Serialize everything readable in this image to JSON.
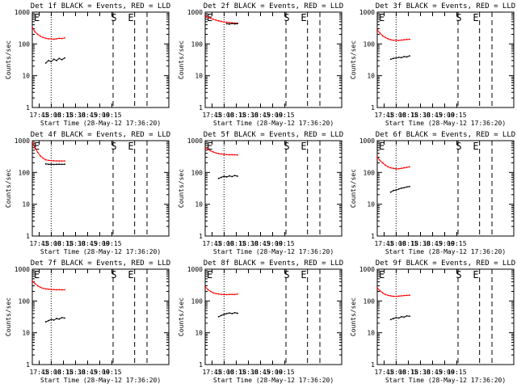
{
  "figure": {
    "xlabel": "Start Time (28-May-12 17:36:20)",
    "ylabel": "Counts/sec",
    "x_tick_labels": [
      "17:45",
      "18:00",
      "18:15",
      "18:30",
      "18:45",
      "19:00",
      "19:15"
    ],
    "y_tick_labels": [
      "1",
      "10",
      "100",
      "1000"
    ],
    "colors": {
      "events": "#000000",
      "lld": "#ff0000",
      "axes": "#000000"
    },
    "markers": {
      "E_left": "E",
      "S": "S",
      "E_right": "E"
    }
  },
  "chart_data": [
    {
      "type": "line",
      "title": "Det 1f BLACK = Events, RED = LLD",
      "xlim": [
        0,
        10140
      ],
      "ylim": [
        1,
        1000
      ],
      "yscale": "log",
      "x_unit": "seconds after 17:36:20",
      "vlines": {
        "dotted": [
          1400
        ],
        "dashed": [
          6000,
          7600,
          8520
        ]
      },
      "series": [
        {
          "name": "RED = LLD",
          "x": [
            0,
            200,
            400,
            600,
            800,
            1000,
            1200,
            1400,
            1600,
            1800,
            2000,
            2200,
            2400
          ],
          "values": [
            330,
            240,
            200,
            175,
            160,
            150,
            145,
            145,
            140,
            145,
            150,
            148,
            155
          ]
        },
        {
          "name": "BLACK = Events",
          "x": [
            1000,
            1200,
            1400,
            1600,
            1800,
            2000,
            2200,
            2400
          ],
          "values": [
            25,
            30,
            28,
            33,
            30,
            35,
            32,
            36
          ]
        }
      ]
    },
    {
      "type": "line",
      "title": "Det 2f BLACK = Events, RED = LLD",
      "xlim": [
        0,
        10140
      ],
      "ylim": [
        1,
        1000
      ],
      "yscale": "log",
      "x_unit": "seconds after 17:36:20",
      "vlines": {
        "dotted": [
          1400
        ],
        "dashed": [
          6000,
          7600,
          8520
        ]
      },
      "series": [
        {
          "name": "RED = LLD",
          "x": [
            0,
            200,
            400,
            600,
            800,
            1000,
            1200,
            1400,
            1600,
            1800,
            2000,
            2200,
            2400
          ],
          "values": [
            760,
            700,
            640,
            600,
            560,
            530,
            510,
            490,
            480,
            470,
            460,
            455,
            450
          ]
        },
        {
          "name": "BLACK = Events",
          "x": [
            1600,
            1800,
            2000,
            2200,
            2400
          ],
          "values": [
            430,
            420,
            440,
            425,
            435
          ]
        }
      ]
    },
    {
      "type": "line",
      "title": "Det 3f BLACK = Events, RED = LLD",
      "xlim": [
        0,
        10140
      ],
      "ylim": [
        1,
        1000
      ],
      "yscale": "log",
      "x_unit": "seconds after 17:36:20",
      "vlines": {
        "dotted": [
          1400
        ],
        "dashed": [
          6000,
          7600,
          8520
        ]
      },
      "series": [
        {
          "name": "RED = LLD",
          "x": [
            0,
            200,
            400,
            600,
            800,
            1000,
            1200,
            1400,
            1600,
            1800,
            2000,
            2200,
            2400
          ],
          "values": [
            280,
            220,
            180,
            160,
            145,
            135,
            130,
            130,
            128,
            132,
            135,
            138,
            140
          ]
        },
        {
          "name": "BLACK = Events",
          "x": [
            1000,
            1200,
            1400,
            1600,
            1800,
            2000,
            2200,
            2400
          ],
          "values": [
            33,
            35,
            36,
            38,
            37,
            40,
            39,
            42
          ]
        }
      ]
    },
    {
      "type": "line",
      "title": "Det 4f BLACK = Events, RED = LLD",
      "xlim": [
        0,
        10140
      ],
      "ylim": [
        1,
        1000
      ],
      "yscale": "log",
      "x_unit": "seconds after 17:36:20",
      "vlines": {
        "dotted": [
          1400
        ],
        "dashed": [
          6000,
          7600,
          8520
        ]
      },
      "series": [
        {
          "name": "RED = LLD",
          "x": [
            0,
            200,
            400,
            600,
            800,
            1000,
            1200,
            1400,
            1600,
            1800,
            2000,
            2200,
            2400
          ],
          "values": [
            880,
            600,
            430,
            330,
            280,
            250,
            240,
            235,
            232,
            230,
            230,
            230,
            230
          ]
        },
        {
          "name": "BLACK = Events",
          "x": [
            1000,
            1200,
            1400,
            1600,
            1800,
            2000,
            2200,
            2400
          ],
          "values": [
            185,
            180,
            182,
            178,
            180,
            182,
            179,
            181
          ]
        }
      ]
    },
    {
      "type": "line",
      "title": "Det 5f BLACK = Events, RED = LLD",
      "xlim": [
        0,
        10140
      ],
      "ylim": [
        1,
        1000
      ],
      "yscale": "log",
      "x_unit": "seconds after 17:36:20",
      "vlines": {
        "dotted": [
          1400
        ],
        "dashed": [
          6000,
          7600,
          8520
        ]
      },
      "series": [
        {
          "name": "RED = LLD",
          "x": [
            0,
            200,
            400,
            600,
            800,
            1000,
            1200,
            1400,
            1600,
            1800,
            2000,
            2200,
            2400
          ],
          "values": [
            600,
            530,
            480,
            440,
            410,
            390,
            380,
            370,
            365,
            360,
            360,
            358,
            355
          ]
        },
        {
          "name": "BLACK = Events",
          "x": [
            1000,
            1200,
            1400,
            1600,
            1800,
            2000,
            2200,
            2400
          ],
          "values": [
            65,
            70,
            75,
            72,
            78,
            74,
            80,
            76
          ]
        }
      ]
    },
    {
      "type": "line",
      "title": "Det 6f BLACK = Events, RED = LLD",
      "xlim": [
        0,
        10140
      ],
      "ylim": [
        1,
        1000
      ],
      "yscale": "log",
      "x_unit": "seconds after 17:36:20",
      "vlines": {
        "dotted": [
          1400
        ],
        "dashed": [
          6000,
          7600,
          8520
        ]
      },
      "series": [
        {
          "name": "RED = LLD",
          "x": [
            0,
            200,
            400,
            600,
            800,
            1000,
            1200,
            1400,
            1600,
            1800,
            2000,
            2200,
            2400
          ],
          "values": [
            300,
            240,
            200,
            170,
            150,
            140,
            135,
            130,
            130,
            135,
            140,
            145,
            150
          ]
        },
        {
          "name": "BLACK = Events",
          "x": [
            1000,
            1200,
            1400,
            1600,
            1800,
            2000,
            2200,
            2400
          ],
          "values": [
            24,
            27,
            28,
            30,
            32,
            33,
            35,
            36
          ]
        }
      ]
    },
    {
      "type": "line",
      "title": "Det 7f BLACK = Events, RED = LLD",
      "xlim": [
        0,
        10140
      ],
      "ylim": [
        1,
        1000
      ],
      "yscale": "log",
      "x_unit": "seconds after 17:36:20",
      "vlines": {
        "dotted": [
          1400
        ],
        "dashed": [
          6000,
          7600,
          8520
        ]
      },
      "series": [
        {
          "name": "RED = LLD",
          "x": [
            0,
            200,
            400,
            600,
            800,
            1000,
            1200,
            1400,
            1600,
            1800,
            2000,
            2200,
            2400
          ],
          "values": [
            420,
            350,
            300,
            270,
            250,
            240,
            235,
            230,
            228,
            225,
            226,
            224,
            225
          ]
        },
        {
          "name": "BLACK = Events",
          "x": [
            1000,
            1200,
            1400,
            1600,
            1800,
            2000,
            2200,
            2400
          ],
          "values": [
            22,
            24,
            26,
            25,
            28,
            27,
            30,
            29
          ]
        }
      ]
    },
    {
      "type": "line",
      "title": "Det 8f BLACK = Events, RED = LLD",
      "xlim": [
        0,
        10140
      ],
      "ylim": [
        1,
        1000
      ],
      "yscale": "log",
      "x_unit": "seconds after 17:36:20",
      "vlines": {
        "dotted": [
          1400
        ],
        "dashed": [
          6000,
          7600,
          8520
        ]
      },
      "series": [
        {
          "name": "RED = LLD",
          "x": [
            0,
            200,
            400,
            600,
            800,
            1000,
            1200,
            1400,
            1600,
            1800,
            2000,
            2200,
            2400
          ],
          "values": [
            280,
            230,
            200,
            180,
            170,
            165,
            160,
            160,
            158,
            160,
            162,
            160,
            165
          ]
        },
        {
          "name": "BLACK = Events",
          "x": [
            1000,
            1200,
            1400,
            1600,
            1800,
            2000,
            2200,
            2400
          ],
          "values": [
            32,
            35,
            38,
            40,
            42,
            40,
            43,
            41
          ]
        }
      ]
    },
    {
      "type": "line",
      "title": "Det 9f BLACK = Events, RED = LLD",
      "xlim": [
        0,
        10140
      ],
      "ylim": [
        1,
        1000
      ],
      "yscale": "log",
      "x_unit": "seconds after 17:36:20",
      "vlines": {
        "dotted": [
          1400
        ],
        "dashed": [
          6000,
          7600,
          8520
        ]
      },
      "series": [
        {
          "name": "RED = LLD",
          "x": [
            0,
            200,
            400,
            600,
            800,
            1000,
            1200,
            1400,
            1600,
            1800,
            2000,
            2200,
            2400
          ],
          "values": [
            260,
            210,
            180,
            160,
            150,
            145,
            140,
            140,
            142,
            145,
            148,
            150,
            152
          ]
        },
        {
          "name": "BLACK = Events",
          "x": [
            1000,
            1200,
            1400,
            1600,
            1800,
            2000,
            2200,
            2400
          ],
          "values": [
            26,
            28,
            30,
            29,
            32,
            31,
            34,
            33
          ]
        }
      ]
    }
  ]
}
